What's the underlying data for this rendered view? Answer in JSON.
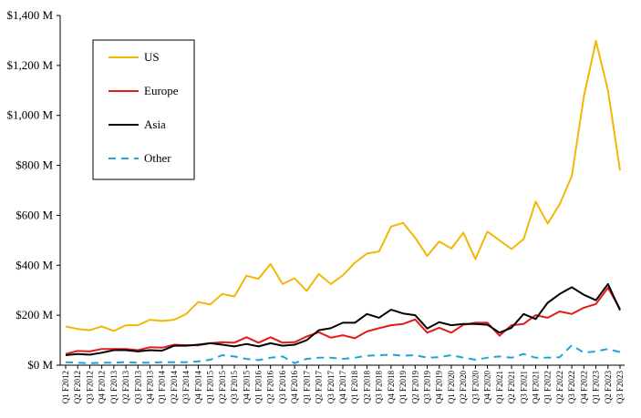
{
  "chart_data": {
    "type": "line",
    "title": "",
    "xlabel": "",
    "ylabel": "",
    "ylim": [
      0,
      1400
    ],
    "yticks": [
      0,
      200,
      400,
      600,
      800,
      1000,
      1200,
      1400
    ],
    "ytick_labels": [
      "$0 M",
      "$200 M",
      "$400 M",
      "$600 M",
      "$800 M",
      "$1,000 M",
      "$1,200 M",
      "$1,400 M"
    ],
    "grid": false,
    "legend_position": "top-left",
    "categories": [
      "Q1 F2012",
      "Q2 F2012",
      "Q3 F2012",
      "Q4 F2012",
      "Q1 F2013",
      "Q2 F2013",
      "Q3 F2013",
      "Q4 F2013",
      "Q1 F2014",
      "Q2 F2014",
      "Q3 F2014",
      "Q4 F2014",
      "Q1 F2015",
      "Q2 F2015",
      "Q3 F2015",
      "Q4 F2015",
      "Q1 F2016",
      "Q2 F2016",
      "Q3 F2016",
      "Q4 F2016",
      "Q1 F2017",
      "Q2 F2017",
      "Q3 F2017",
      "Q4 F2017",
      "Q1 F2018",
      "Q2 F2018",
      "Q3 F2018",
      "Q4 F2018",
      "Q1 F2019",
      "Q2 F2019",
      "Q3 F2019",
      "Q4 F2019",
      "Q1 F2020",
      "Q2 F2020",
      "Q3 F2020",
      "Q4 F2020",
      "Q1 F2021",
      "Q2 F2021",
      "Q3 F2021",
      "Q4 F2021",
      "Q1 F2022",
      "Q2 F2022",
      "Q3 F2022",
      "Q4 F2022",
      "Q1 F2023",
      "Q2 F2023",
      "Q3 F2023"
    ],
    "series": [
      {
        "name": "US",
        "color": "#F2B705",
        "style": "solid",
        "values": [
          155,
          145,
          140,
          155,
          137,
          160,
          160,
          182,
          177,
          182,
          205,
          253,
          243,
          285,
          275,
          358,
          346,
          405,
          325,
          348,
          297,
          365,
          325,
          360,
          410,
          447,
          455,
          555,
          570,
          510,
          437,
          495,
          467,
          530,
          425,
          535,
          500,
          465,
          505,
          655,
          567,
          645,
          757,
          1075,
          1298,
          1100,
          780
        ]
      },
      {
        "name": "Europe",
        "color": "#E31A1C",
        "style": "solid",
        "values": [
          45,
          57,
          55,
          65,
          65,
          65,
          60,
          72,
          70,
          82,
          80,
          80,
          88,
          92,
          90,
          112,
          90,
          112,
          90,
          92,
          115,
          132,
          110,
          120,
          108,
          135,
          148,
          160,
          165,
          183,
          130,
          150,
          130,
          162,
          170,
          170,
          118,
          160,
          165,
          200,
          190,
          215,
          205,
          230,
          245,
          310,
          225
        ]
      },
      {
        "name": "Asia",
        "color": "#000000",
        "style": "solid",
        "values": [
          40,
          45,
          42,
          50,
          60,
          60,
          55,
          60,
          58,
          78,
          78,
          82,
          88,
          82,
          75,
          85,
          75,
          88,
          78,
          82,
          100,
          140,
          148,
          170,
          170,
          205,
          190,
          222,
          207,
          200,
          147,
          172,
          160,
          165,
          165,
          162,
          130,
          150,
          205,
          185,
          250,
          285,
          312,
          282,
          260,
          325,
          220
        ]
      },
      {
        "name": "Other",
        "color": "#1FA4D8",
        "style": "dashed",
        "values": [
          12,
          10,
          8,
          10,
          10,
          12,
          10,
          10,
          12,
          12,
          12,
          15,
          22,
          40,
          35,
          25,
          20,
          30,
          35,
          8,
          25,
          30,
          30,
          25,
          30,
          38,
          40,
          42,
          38,
          40,
          30,
          32,
          40,
          30,
          22,
          30,
          35,
          30,
          45,
          30,
          30,
          32,
          80,
          50,
          55,
          65,
          52
        ]
      }
    ]
  }
}
